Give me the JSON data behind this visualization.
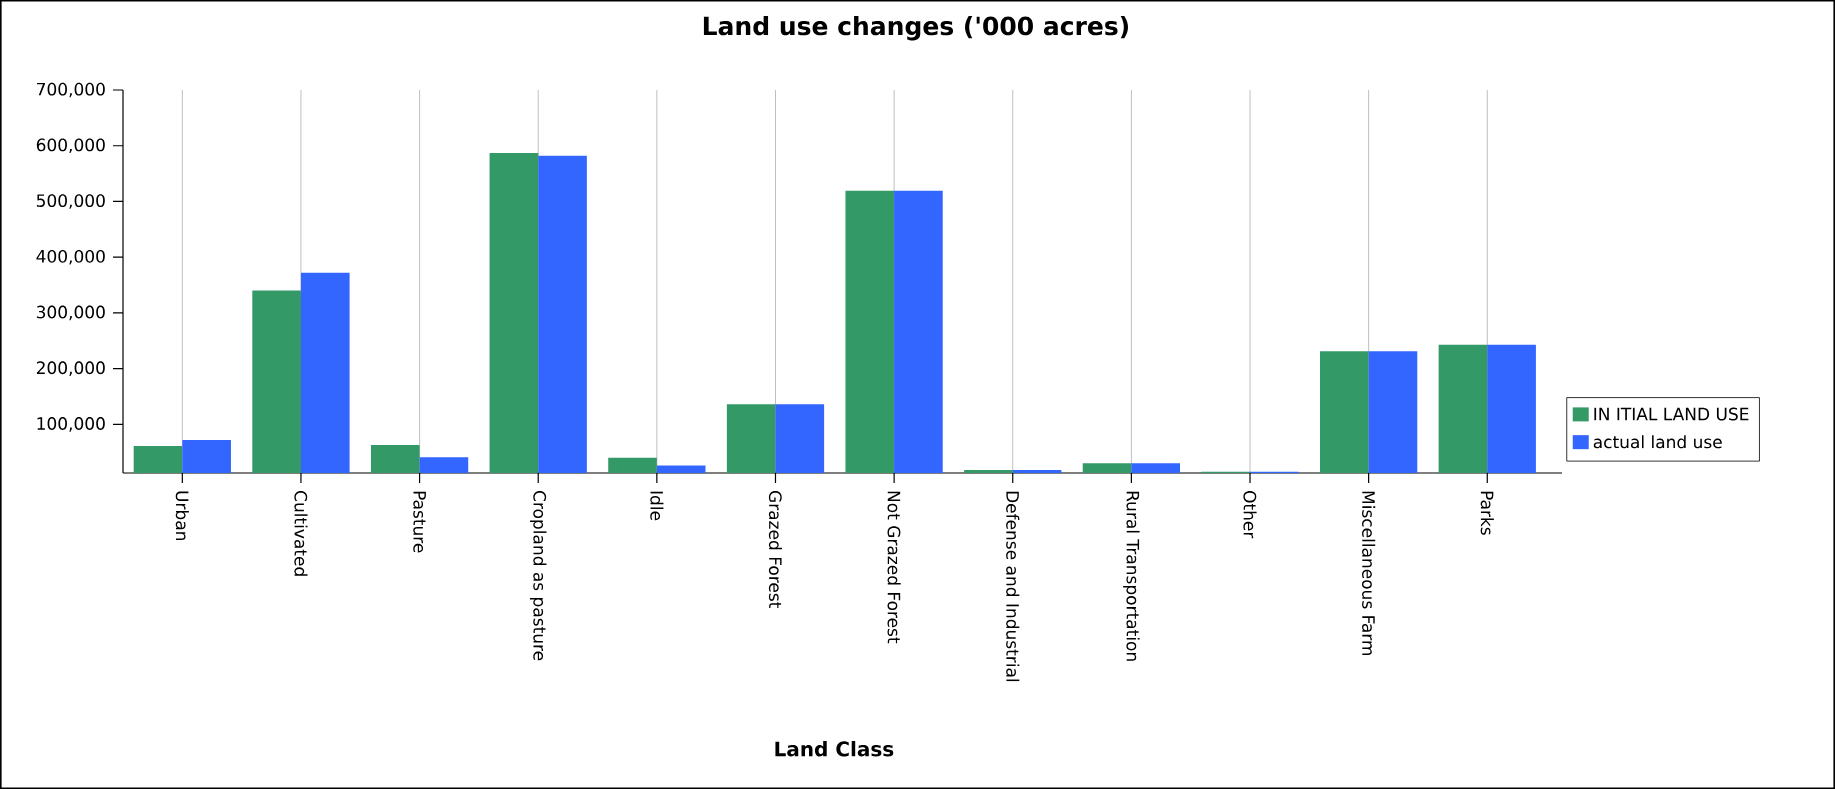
{
  "chart_data": {
    "type": "bar",
    "title": "Land use changes ('000 acres)",
    "xlabel": "Land Class",
    "categories": [
      "Urban",
      "Cultivated",
      "Pasture",
      "Cropland as pasture",
      "Idle",
      "Grazed Forest",
      "Not Grazed Forest",
      "Defense and Industrial",
      "Rural Transportation",
      "Other",
      "Miscellaneous Farm",
      "Parks"
    ],
    "series": [
      {
        "name": "IN ITIAL LAND USE",
        "color": "#339966",
        "values": [
          61000,
          340000,
          63000,
          587000,
          40000,
          136000,
          519000,
          18000,
          30000,
          15000,
          231000,
          243000
        ]
      },
      {
        "name": "actual land use",
        "color": "#3366ff",
        "values": [
          72000,
          372000,
          41000,
          582000,
          26000,
          136000,
          519000,
          18000,
          30000,
          15000,
          231000,
          243000
        ]
      }
    ],
    "ylim": [
      12700,
      700000
    ],
    "yticks": [
      {
        "value": 100000,
        "label": "100,000"
      },
      {
        "value": 200000,
        "label": "200,000"
      },
      {
        "value": 300000,
        "label": "300,000"
      },
      {
        "value": 400000,
        "label": "400,000"
      },
      {
        "value": 500000,
        "label": "500,000"
      },
      {
        "value": 600000,
        "label": "600,000"
      },
      {
        "value": 700000,
        "label": "700,000"
      }
    ],
    "grid": "x",
    "legend": "right"
  }
}
